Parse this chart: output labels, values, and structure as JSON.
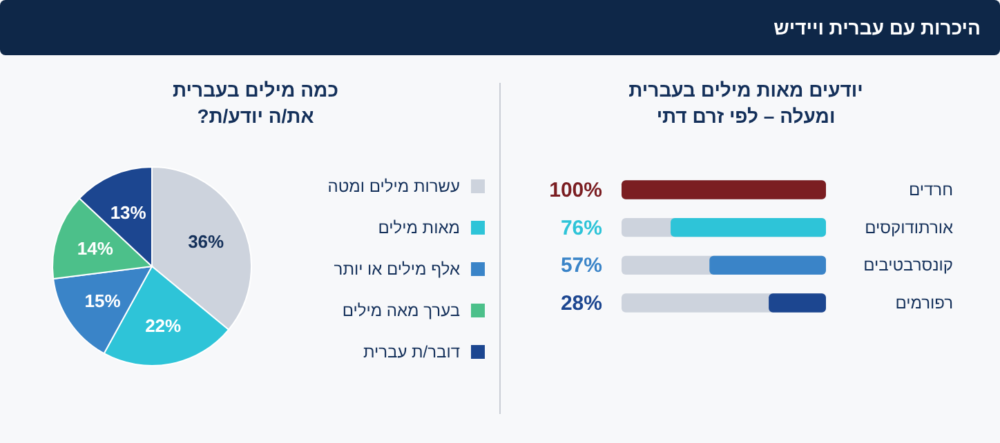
{
  "chart_data": [
    {
      "type": "other",
      "title": "היכרות עם עברית ויידיש"
    },
    {
      "type": "bar",
      "orientation": "horizontal",
      "title": "יודעים מאות מילים בעברית\nומעלה – לפי זרם דתי",
      "categories": [
        "חרדים",
        "אורתודוקסים",
        "קונסרבטיבים",
        "רפורמים"
      ],
      "values": [
        100,
        76,
        57,
        28
      ],
      "colors": [
        "#7b1e22",
        "#2ec4d8",
        "#3a84c8",
        "#1c4690"
      ],
      "value_labels": [
        "100%",
        "76%",
        "57%",
        "28%"
      ],
      "xlim": [
        100,
        0
      ]
    },
    {
      "type": "pie",
      "title": "כמה מילים בעברית\nאת/ה יודע/ת?",
      "categories": [
        "עשרות מילים ומטה",
        "מאות מילים",
        "אלף מילים או יותר",
        "בערך מאה מילים",
        "דובר/ת עברית"
      ],
      "values": [
        36,
        22,
        15,
        14,
        13
      ],
      "colors": [
        "#cdd3dd",
        "#2ec4d8",
        "#3a84c8",
        "#4cc08a",
        "#1c4690"
      ],
      "value_labels": [
        "36%",
        "22%",
        "15%",
        "14%",
        "13%"
      ],
      "legend": "right"
    }
  ]
}
